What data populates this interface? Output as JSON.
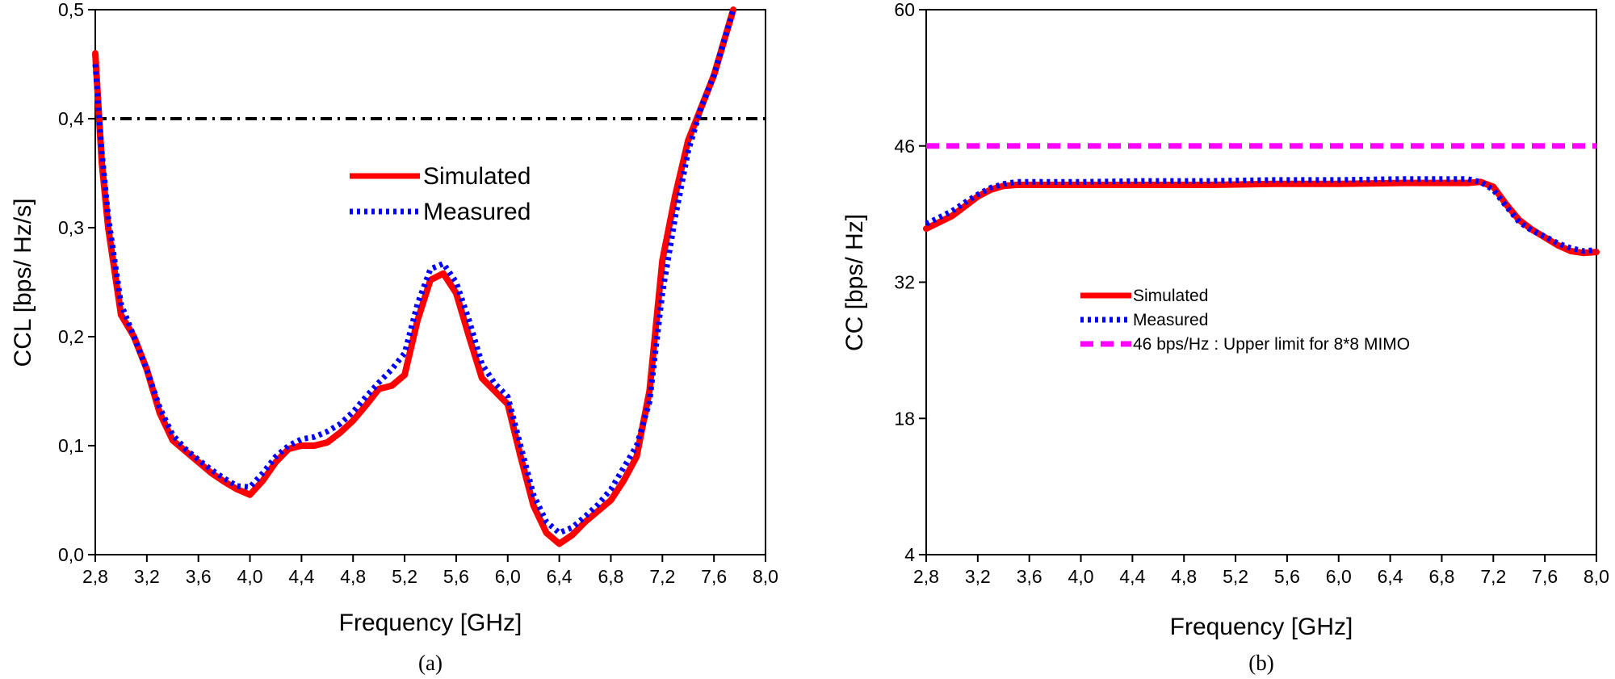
{
  "chart_data": [
    {
      "type": "line",
      "caption": "(a)",
      "xlabel": "Frequency [GHz]",
      "ylabel": "CCL [bps/ Hz/s]",
      "xlim": [
        2.8,
        8.0
      ],
      "ylim": [
        0.0,
        0.5
      ],
      "xticks": [
        "2,8",
        "3,2",
        "3,6",
        "4,0",
        "4,4",
        "4,8",
        "5,2",
        "5,6",
        "6,0",
        "6,4",
        "6,8",
        "7,2",
        "7,6",
        "8,0"
      ],
      "yticks": [
        "0,0",
        "0,1",
        "0,2",
        "0,3",
        "0,4",
        "0,5"
      ],
      "legend_position": "center",
      "grid": false,
      "reference_line": {
        "y": 0.4,
        "style": "dash-dot",
        "color": "#000000"
      },
      "series": [
        {
          "name": "Simulated",
          "color": "#ff0000",
          "style": "solid",
          "x": [
            2.8,
            2.85,
            2.9,
            3.0,
            3.1,
            3.2,
            3.3,
            3.4,
            3.5,
            3.6,
            3.7,
            3.8,
            3.9,
            4.0,
            4.1,
            4.2,
            4.3,
            4.4,
            4.5,
            4.6,
            4.7,
            4.8,
            4.9,
            5.0,
            5.1,
            5.2,
            5.3,
            5.4,
            5.5,
            5.6,
            5.7,
            5.8,
            5.9,
            6.0,
            6.1,
            6.2,
            6.3,
            6.4,
            6.5,
            6.6,
            6.7,
            6.8,
            6.9,
            7.0,
            7.1,
            7.2,
            7.3,
            7.4,
            7.5,
            7.6,
            7.7,
            7.75
          ],
          "y": [
            0.46,
            0.36,
            0.3,
            0.22,
            0.2,
            0.17,
            0.13,
            0.105,
            0.095,
            0.085,
            0.075,
            0.067,
            0.06,
            0.055,
            0.068,
            0.085,
            0.097,
            0.1,
            0.1,
            0.103,
            0.112,
            0.123,
            0.137,
            0.152,
            0.155,
            0.165,
            0.215,
            0.252,
            0.258,
            0.24,
            0.2,
            0.162,
            0.15,
            0.138,
            0.09,
            0.045,
            0.02,
            0.01,
            0.018,
            0.03,
            0.04,
            0.05,
            0.068,
            0.09,
            0.15,
            0.27,
            0.33,
            0.38,
            0.41,
            0.44,
            0.48,
            0.5
          ]
        },
        {
          "name": "Measured",
          "color": "#0000ff",
          "style": "dotted",
          "x": [
            2.8,
            2.85,
            2.9,
            3.0,
            3.1,
            3.2,
            3.3,
            3.4,
            3.5,
            3.6,
            3.7,
            3.8,
            3.9,
            4.0,
            4.1,
            4.2,
            4.3,
            4.4,
            4.5,
            4.6,
            4.7,
            4.8,
            4.9,
            5.0,
            5.1,
            5.2,
            5.3,
            5.4,
            5.5,
            5.6,
            5.7,
            5.8,
            5.9,
            6.0,
            6.1,
            6.2,
            6.3,
            6.4,
            6.5,
            6.6,
            6.7,
            6.8,
            6.9,
            7.0,
            7.1,
            7.2,
            7.3,
            7.4,
            7.5,
            7.6,
            7.7,
            7.75
          ],
          "y": [
            0.45,
            0.37,
            0.31,
            0.23,
            0.2,
            0.17,
            0.135,
            0.11,
            0.097,
            0.087,
            0.078,
            0.07,
            0.063,
            0.062,
            0.075,
            0.09,
            0.1,
            0.106,
            0.108,
            0.113,
            0.12,
            0.131,
            0.145,
            0.158,
            0.17,
            0.185,
            0.23,
            0.262,
            0.267,
            0.25,
            0.215,
            0.175,
            0.157,
            0.145,
            0.1,
            0.055,
            0.03,
            0.02,
            0.025,
            0.035,
            0.046,
            0.06,
            0.08,
            0.1,
            0.14,
            0.24,
            0.31,
            0.37,
            0.41,
            0.44,
            0.48,
            0.5
          ]
        }
      ]
    },
    {
      "type": "line",
      "caption": "(b)",
      "xlabel": "Frequency [GHz]",
      "ylabel": "CC [bps/ Hz]",
      "xlim": [
        2.8,
        8.0
      ],
      "ylim": [
        4,
        60
      ],
      "xticks": [
        "2,8",
        "3,2",
        "3,6",
        "4,0",
        "4,4",
        "4,8",
        "5,2",
        "5,6",
        "6,0",
        "6,4",
        "6,8",
        "7,2",
        "7,6",
        "8,0"
      ],
      "yticks": [
        "4",
        "18",
        "32",
        "46",
        "60"
      ],
      "legend_position": "center",
      "grid": false,
      "series": [
        {
          "name": "Simulated",
          "color": "#ff0000",
          "style": "solid",
          "x": [
            2.8,
            3.0,
            3.1,
            3.2,
            3.3,
            3.4,
            3.5,
            3.6,
            4.0,
            4.5,
            5.0,
            5.5,
            6.0,
            6.5,
            7.0,
            7.1,
            7.2,
            7.3,
            7.4,
            7.5,
            7.6,
            7.7,
            7.8,
            7.9,
            8.0
          ],
          "y": [
            37.5,
            38.8,
            39.8,
            40.8,
            41.5,
            41.9,
            42.0,
            42.0,
            42.0,
            42.0,
            42.0,
            42.1,
            42.1,
            42.2,
            42.2,
            42.3,
            41.8,
            40.0,
            38.4,
            37.4,
            36.6,
            35.8,
            35.2,
            35.0,
            35.1
          ]
        },
        {
          "name": "Measured",
          "color": "#0000ff",
          "style": "dotted",
          "x": [
            2.8,
            3.0,
            3.1,
            3.2,
            3.3,
            3.4,
            3.5,
            3.6,
            4.0,
            4.5,
            5.0,
            5.5,
            6.0,
            6.5,
            7.0,
            7.1,
            7.2,
            7.3,
            7.4,
            7.5,
            7.6,
            7.7,
            7.8,
            7.9,
            8.0
          ],
          "y": [
            38.0,
            39.3,
            40.2,
            41.0,
            41.7,
            42.1,
            42.3,
            42.3,
            42.3,
            42.4,
            42.4,
            42.5,
            42.5,
            42.6,
            42.6,
            42.3,
            41.5,
            39.8,
            38.2,
            37.3,
            36.7,
            36.0,
            35.5,
            35.2,
            35.3
          ]
        },
        {
          "name": "46 bps/Hz : Upper limit for 8*8 MIMO",
          "color": "#ff00ff",
          "style": "dashed",
          "x": [
            2.8,
            8.0
          ],
          "y": [
            46,
            46
          ]
        }
      ]
    }
  ]
}
